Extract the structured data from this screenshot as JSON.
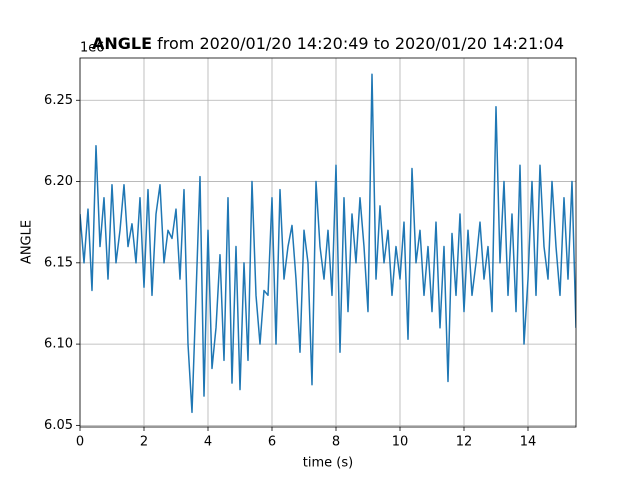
{
  "chart_data": {
    "type": "line",
    "title_bold": "ANGLE",
    "title_rest": " from 2020/01/20 14:20:49 to 2020/01/20 14:21:04",
    "x_label": "time (s)",
    "y_label": "ANGLE",
    "y_offset_label": "1e6",
    "xlim": [
      0,
      15.5
    ],
    "ylim": [
      6.049,
      6.276
    ],
    "xticks": [
      0,
      2,
      4,
      6,
      8,
      10,
      12,
      14
    ],
    "yticks": [
      {
        "value": 6.05,
        "label": "6.05"
      },
      {
        "value": 6.1,
        "label": "6.10"
      },
      {
        "value": 6.15,
        "label": "6.15"
      },
      {
        "value": 6.2,
        "label": "6.20"
      },
      {
        "value": 6.25,
        "label": "6.25"
      }
    ],
    "grid": true,
    "series": [
      {
        "name": "ANGLE",
        "color": "#1f77b4",
        "x": [
          0,
          0.125,
          0.25,
          0.375,
          0.5,
          0.625,
          0.75,
          0.875,
          1,
          1.125,
          1.25,
          1.375,
          1.5,
          1.625,
          1.75,
          1.875,
          2,
          2.125,
          2.25,
          2.375,
          2.5,
          2.625,
          2.75,
          2.875,
          3,
          3.125,
          3.25,
          3.375,
          3.5,
          3.625,
          3.75,
          3.875,
          4,
          4.125,
          4.25,
          4.375,
          4.5,
          4.625,
          4.75,
          4.875,
          5,
          5.125,
          5.25,
          5.375,
          5.5,
          5.625,
          5.75,
          5.875,
          6,
          6.125,
          6.25,
          6.375,
          6.5,
          6.625,
          6.75,
          6.875,
          7,
          7.125,
          7.25,
          7.375,
          7.5,
          7.625,
          7.75,
          7.875,
          8,
          8.125,
          8.25,
          8.375,
          8.5,
          8.625,
          8.75,
          8.875,
          9,
          9.125,
          9.25,
          9.375,
          9.5,
          9.625,
          9.75,
          9.875,
          10,
          10.125,
          10.25,
          10.375,
          10.5,
          10.625,
          10.75,
          10.875,
          11,
          11.125,
          11.25,
          11.375,
          11.5,
          11.625,
          11.75,
          11.875,
          12,
          12.125,
          12.25,
          12.375,
          12.5,
          12.625,
          12.75,
          12.875,
          13,
          13.125,
          13.25,
          13.375,
          13.5,
          13.625,
          13.75,
          13.875,
          14,
          14.125,
          14.25,
          14.375,
          14.5,
          14.625,
          14.75,
          14.875,
          15,
          15.125,
          15.25,
          15.375,
          15.5
        ],
        "values": [
          6.18,
          6.15,
          6.183,
          6.133,
          6.222,
          6.16,
          6.19,
          6.14,
          6.198,
          6.15,
          6.17,
          6.198,
          6.16,
          6.174,
          6.15,
          6.19,
          6.135,
          6.195,
          6.13,
          6.18,
          6.198,
          6.15,
          6.17,
          6.165,
          6.183,
          6.14,
          6.195,
          6.1,
          6.058,
          6.13,
          6.203,
          6.068,
          6.17,
          6.085,
          6.11,
          6.155,
          6.09,
          6.19,
          6.076,
          6.16,
          6.072,
          6.15,
          6.09,
          6.2,
          6.13,
          6.1,
          6.133,
          6.13,
          6.19,
          6.1,
          6.195,
          6.14,
          6.16,
          6.173,
          6.14,
          6.095,
          6.17,
          6.15,
          6.075,
          6.2,
          6.16,
          6.14,
          6.17,
          6.13,
          6.21,
          6.095,
          6.19,
          6.12,
          6.18,
          6.15,
          6.19,
          6.16,
          6.12,
          6.266,
          6.14,
          6.185,
          6.15,
          6.17,
          6.13,
          6.16,
          6.14,
          6.175,
          6.103,
          6.208,
          6.15,
          6.17,
          6.13,
          6.16,
          6.12,
          6.175,
          6.11,
          6.16,
          6.077,
          6.168,
          6.13,
          6.18,
          6.12,
          6.17,
          6.13,
          6.15,
          6.175,
          6.14,
          6.16,
          6.12,
          6.246,
          6.15,
          6.2,
          6.13,
          6.18,
          6.12,
          6.21,
          6.1,
          6.14,
          6.2,
          6.13,
          6.21,
          6.16,
          6.14,
          6.2,
          6.16,
          6.13,
          6.19,
          6.14,
          6.2,
          6.11
        ]
      }
    ]
  }
}
